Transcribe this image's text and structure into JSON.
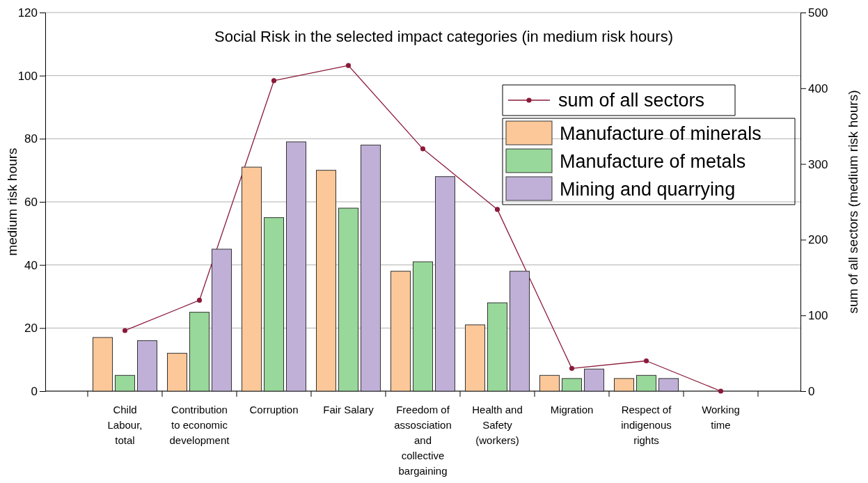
{
  "chart_data": {
    "type": "bar",
    "title": "Social Risk in the selected impact categories (in medium risk hours)",
    "ylabel": "medium risk hours",
    "y2label": "sum of all sectors (medium risk hours)",
    "categories": [
      "Child Labour, total",
      "Contribution to economic development",
      "Corruption",
      "Fair Salary",
      "Freedom of assosciation and collective bargaining",
      "Health and Safety (workers)",
      "Migration",
      "Respect of indigenous rights",
      "Working time"
    ],
    "series": [
      {
        "name": "sum of all sectors",
        "type": "line",
        "axis": "y2",
        "color": "#8b1a3a",
        "marker": "circle",
        "values": [
          80,
          120,
          410,
          430,
          320,
          240,
          30,
          40,
          0
        ]
      },
      {
        "name": "Manufacture of minerals",
        "color": "#fdc899",
        "values": [
          17,
          12,
          71,
          70,
          38,
          21,
          5,
          4,
          null
        ]
      },
      {
        "name": "Manufacture of metals",
        "color": "#98d89a",
        "values": [
          5,
          25,
          55,
          58,
          41,
          28,
          4,
          5,
          null
        ]
      },
      {
        "name": "Mining and quarrying",
        "color": "#c0b0d8",
        "values": [
          16,
          45,
          79,
          78,
          68,
          38,
          7,
          4,
          null
        ]
      }
    ],
    "ylim": [
      0,
      120
    ],
    "yticks": [
      0,
      20,
      40,
      60,
      80,
      100,
      120
    ],
    "y2lim": [
      0,
      500
    ],
    "y2ticks": [
      0,
      100,
      200,
      300,
      400,
      500
    ],
    "grid": "y",
    "legend": "top right"
  }
}
